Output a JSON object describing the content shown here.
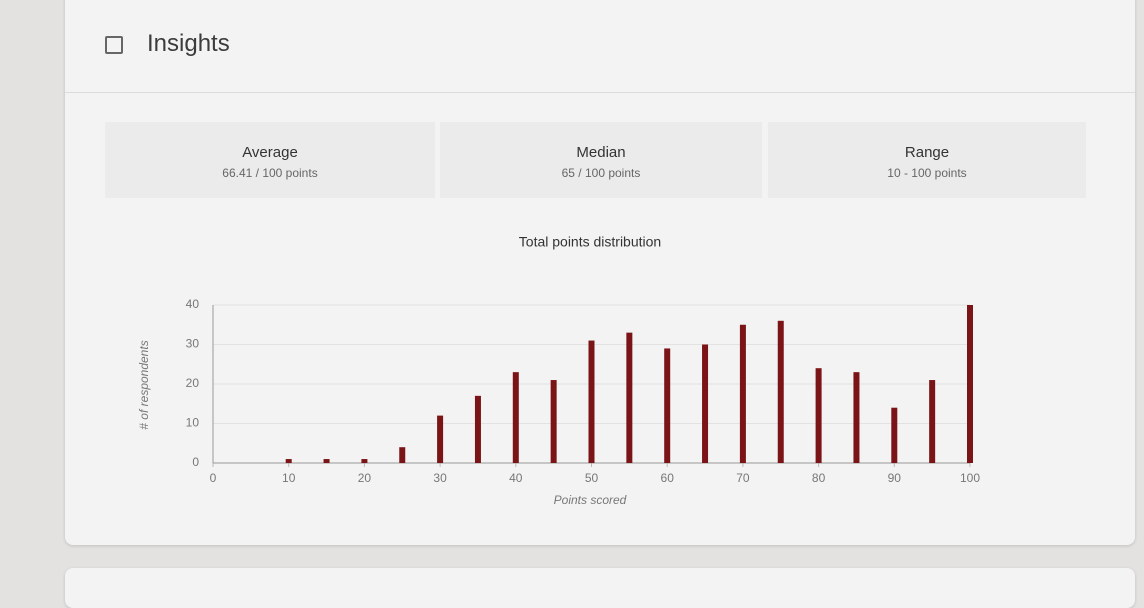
{
  "header": {
    "title": "Insights"
  },
  "stats": [
    {
      "label": "Average",
      "value": "66.41 / 100 points"
    },
    {
      "label": "Median",
      "value": "65 / 100 points"
    },
    {
      "label": "Range",
      "value": "10 - 100 points"
    }
  ],
  "chart_data": {
    "type": "bar",
    "title": "Total points distribution",
    "x_label": "Points scored",
    "y_label": "# of respondents",
    "x": [
      10,
      15,
      20,
      25,
      30,
      35,
      40,
      45,
      50,
      55,
      60,
      65,
      70,
      75,
      80,
      85,
      90,
      95,
      100
    ],
    "values": [
      1,
      1,
      1,
      4,
      12,
      17,
      23,
      21,
      31,
      33,
      29,
      30,
      35,
      36,
      24,
      23,
      14,
      21,
      40
    ],
    "color": "#7a1416",
    "xlim": [
      0,
      100
    ],
    "xticks": [
      0,
      10,
      20,
      30,
      40,
      50,
      60,
      70,
      80,
      90,
      100
    ],
    "ylim": [
      0,
      40
    ],
    "yticks": [
      0,
      10,
      20,
      30,
      40
    ]
  }
}
